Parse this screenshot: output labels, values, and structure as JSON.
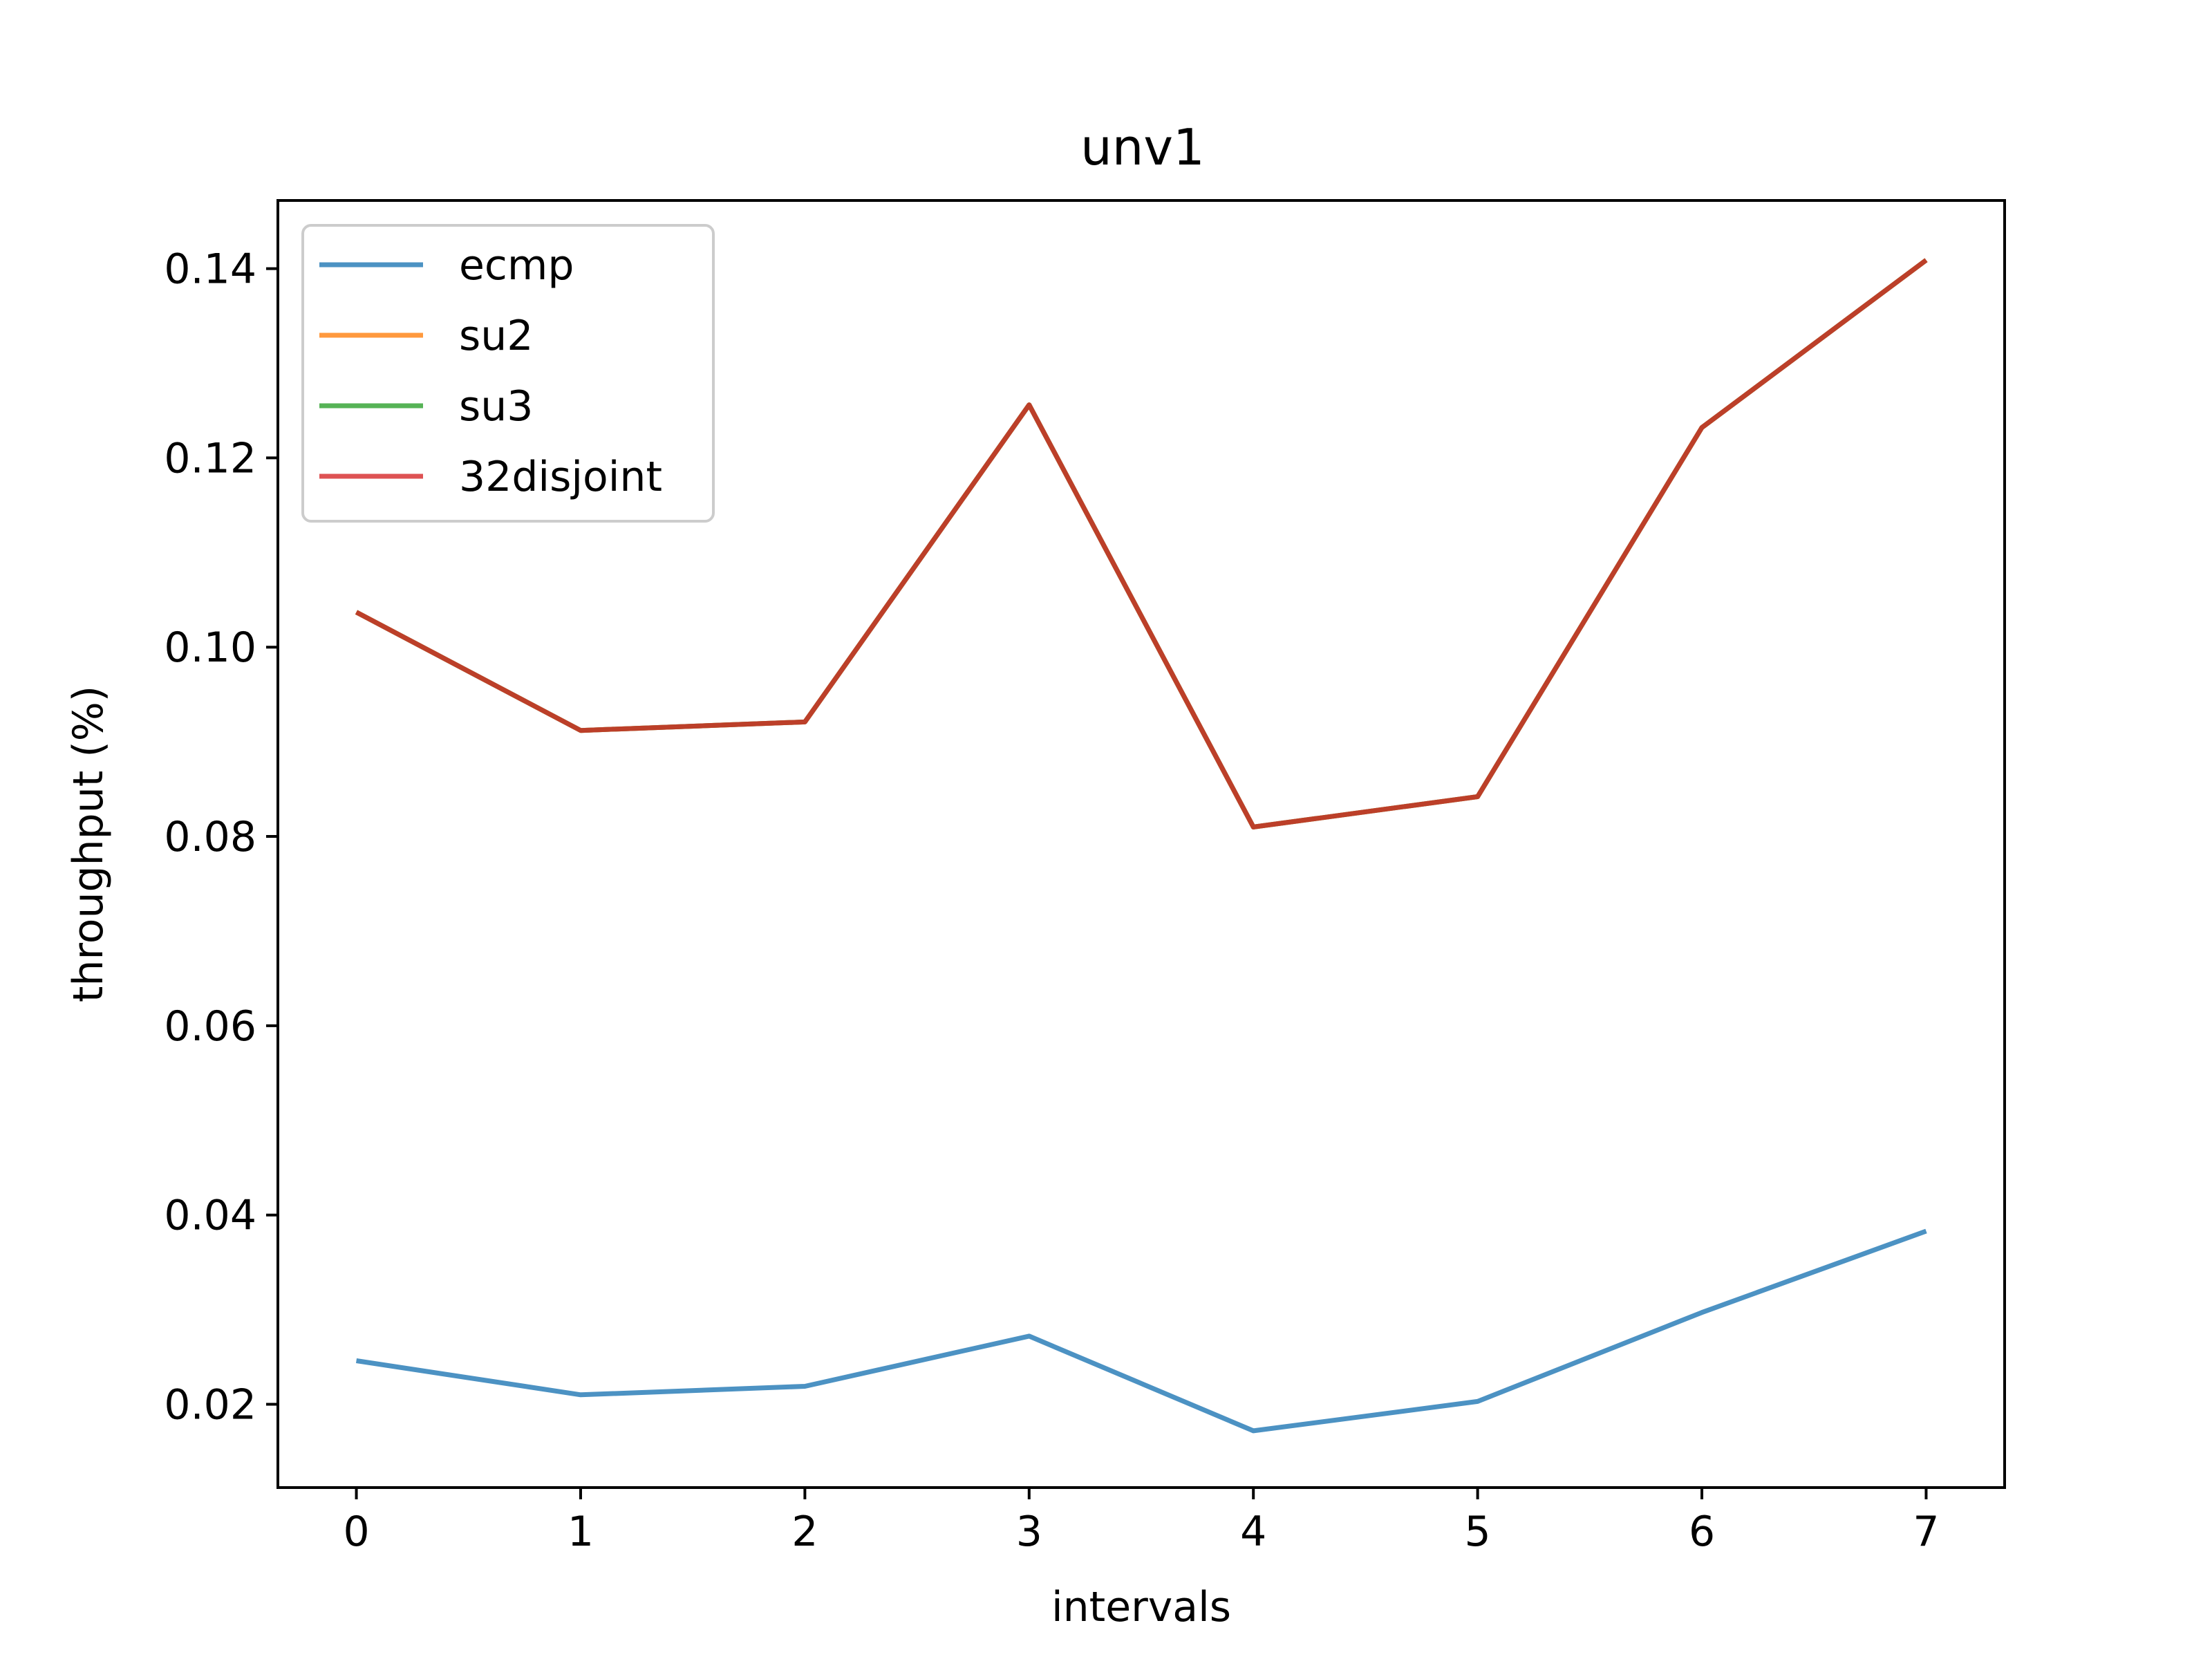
{
  "chart_data": {
    "type": "line",
    "title": "unv1",
    "xlabel": "intervals",
    "ylabel": "throughput (%)",
    "x": [
      0,
      1,
      2,
      3,
      4,
      5,
      6,
      7
    ],
    "xlim": [
      -0.35,
      7.35
    ],
    "ylim": [
      0.0112,
      0.1472
    ],
    "xticks": [
      0,
      1,
      2,
      3,
      4,
      5,
      6,
      7
    ],
    "xtick_labels": [
      "0",
      "1",
      "2",
      "3",
      "4",
      "5",
      "6",
      "7"
    ],
    "yticks": [
      0.02,
      0.04,
      0.06,
      0.08,
      0.1,
      0.12,
      0.14
    ],
    "ytick_labels": [
      "0.02",
      "0.04",
      "0.06",
      "0.08",
      "0.10",
      "0.12",
      "0.14"
    ],
    "grid": false,
    "legend_position": "upper left",
    "series": [
      {
        "name": "ecmp",
        "color": "#1f77b4",
        "values": [
          0.0246,
          0.021,
          0.0219,
          0.0272,
          0.0172,
          0.0203,
          0.0297,
          0.0383
        ]
      },
      {
        "name": "su2",
        "color": "#ff7f0e",
        "values": [
          0.1037,
          0.0912,
          0.0921,
          0.1256,
          0.081,
          0.0842,
          0.1232,
          0.1409
        ]
      },
      {
        "name": "su3",
        "color": "#2ca02c",
        "values": [
          0.1037,
          0.0912,
          0.0921,
          0.1256,
          0.081,
          0.0842,
          0.1232,
          0.1409
        ]
      },
      {
        "name": "32disjoint",
        "color": "#d62728",
        "values": [
          0.1037,
          0.0912,
          0.0921,
          0.1256,
          0.081,
          0.0842,
          0.1232,
          0.1409
        ]
      }
    ]
  }
}
